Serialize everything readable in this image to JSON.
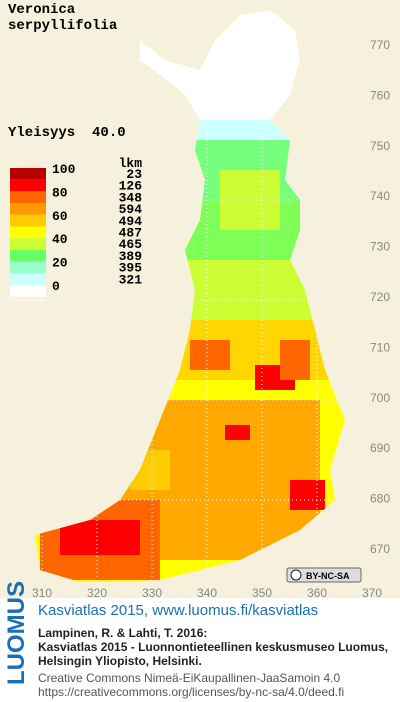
{
  "species": [
    "Veronica",
    "serpyllifolia"
  ],
  "frequency": "Yleisyys  40.0",
  "legend": {
    "scale_labels": [
      "100",
      "80",
      "60",
      "40",
      "20",
      "0"
    ],
    "count_header": "lkm",
    "counts": [
      "23",
      "126",
      "348",
      "594",
      "494",
      "487",
      "465",
      "389",
      "395",
      "321"
    ],
    "colors": [
      "#b40000",
      "#ff0000",
      "#ff6600",
      "#ff9900",
      "#ffcc00",
      "#ffff00",
      "#ccff33",
      "#66ff66",
      "#99ffcc",
      "#ccffff",
      "#ffffff"
    ]
  },
  "x_axis": [
    "310",
    "320",
    "330",
    "340",
    "350",
    "360",
    "370"
  ],
  "y_axis": [
    "670",
    "680",
    "690",
    "700",
    "710",
    "720",
    "730",
    "740",
    "750",
    "760",
    "770"
  ],
  "license_badge": "BY-NC-SA",
  "footer": {
    "logo": "LUOMUS",
    "heading": "Kasviatlas 2015, www.luomus.fi/kasviatlas",
    "citation": [
      "Lampinen, R. & Lahti, T. 2016:",
      "Kasviatlas 2015 - Luonnontieteellinen keskusmuseo Luomus,",
      "Helsingin Yliopisto, Helsinki."
    ],
    "license": [
      "Creative Commons Nimeä-EiKaupallinen-JaaSamoin 4.0",
      "https://creativecommons.org/licenses/by-nc-sa/4.0/deed.fi"
    ]
  }
}
